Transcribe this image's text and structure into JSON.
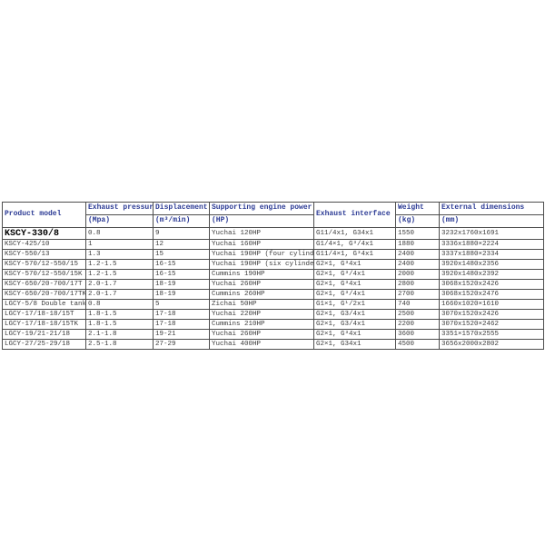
{
  "accent_color": "#2b3a94",
  "grid_color": "#4d4d4d",
  "table": {
    "columns": [
      {
        "label": "Product model",
        "unit": ""
      },
      {
        "label": "Exhaust pressure",
        "unit": "(Mpa)"
      },
      {
        "label": "Displacement",
        "unit": "(m³/min)"
      },
      {
        "label": "Supporting engine power",
        "unit": "(HP)"
      },
      {
        "label": "Exhaust interface",
        "unit": ""
      },
      {
        "label": "Weight",
        "unit": "(kg)"
      },
      {
        "label": "External dimensions",
        "unit": "(mm)"
      }
    ],
    "rows": [
      [
        "KSCY-330/8",
        "0.8",
        "9",
        "Yuchai 120HP",
        "G11/4x1, G34x1",
        "1550",
        "3232x1760x1691"
      ],
      [
        "KSCY-425/10",
        "1",
        "12",
        "Yuchai 160HP",
        "G1/4×1, G³/4x1",
        "1880",
        "3336x1880×2224"
      ],
      [
        "KSCY-550/13",
        "1.3",
        "15",
        "Yuchai 190HP (four cylinder)",
        "G11/4×1, G³4x1",
        "2400",
        "3337x1880×2334"
      ],
      [
        "KSCY-570/12-550/15",
        "1.2-1.5",
        "16-15",
        "Yuchai 190HP (six cylinder)",
        "G2×1, G³4x1",
        "2400",
        "3920x1480x2356"
      ],
      [
        "KSCY-570/12-550/15K",
        "1.2-1.5",
        "16-15",
        "Cummins 190HP",
        "G2×1, G³/4x1",
        "2000",
        "3920x1480x2392"
      ],
      [
        "KSCY-650/20-700/17T",
        "2.0-1.7",
        "18-19",
        "Yuchai 260HP",
        "G2×1, G³4x1",
        "2800",
        "3068x1520x2426"
      ],
      [
        "KSCY-650/20-700/17TK",
        "2.0-1.7",
        "18-19",
        "Cummins 260HP",
        "G2×1, G³/4x1",
        "2700",
        "3068x1520x2476"
      ],
      [
        "LGCY-5/8 Double tank",
        "0.8",
        "5",
        "Zichai 50HP",
        "G1×1, G¹/2x1",
        "740",
        "1660x1020×1610"
      ],
      [
        "LGCY-17/18-18/15T",
        "1.8-1.5",
        "17-18",
        "Yuchai 220HP",
        "G2×1, G3/4x1",
        "2500",
        "3070x1520x2426"
      ],
      [
        "LGCY-17/18-18/15TK",
        "1.8-1.5",
        "17-18",
        "Cummins 210HP",
        "G2×1, G3/4x1",
        "2200",
        "3070x1520×2462"
      ],
      [
        "LGCY-19/21-21/18",
        "2.1-1.8",
        "19-21",
        "Yuchai 260HP",
        "G2×1, G³4x1",
        "3600",
        "3351×1570x2555"
      ],
      [
        "LGCY-27/25-29/18",
        "2.5-1.8",
        "27-29",
        "Yuchai 400HP",
        "G2×1, G34x1",
        "4500",
        "3656x2000x2802"
      ]
    ]
  }
}
